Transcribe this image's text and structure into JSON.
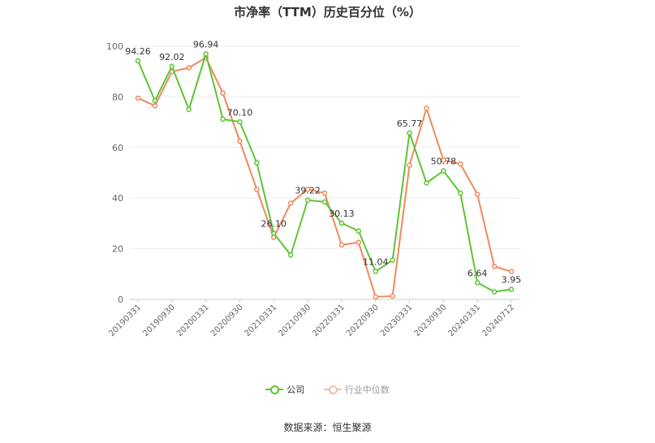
{
  "title": "市净率（TTM）历史百分位（%）",
  "source": "数据来源：恒生聚源",
  "chart_data": {
    "type": "line",
    "title": "市净率（TTM）历史百分位（%）",
    "ylim": [
      0,
      100
    ],
    "yticks": [
      0,
      20,
      40,
      60,
      80,
      100
    ],
    "grid": true,
    "legend_position": "bottom",
    "xtick_labels": [
      "20190331",
      "20190930",
      "20200331",
      "20200930",
      "20210331",
      "20210930",
      "20220331",
      "20220930",
      "20230331",
      "20230930",
      "20240331",
      "20240712"
    ],
    "x": [
      "20190331",
      "20190630",
      "20190930",
      "20191231",
      "20200331",
      "20200630",
      "20200930",
      "20201231",
      "20210331",
      "20210630",
      "20210930",
      "20211231",
      "20220331",
      "20220630",
      "20220930",
      "20221231",
      "20230331",
      "20230630",
      "20230930",
      "20231231",
      "20240331",
      "20240630",
      "20240712"
    ],
    "series": [
      {
        "name": "公司",
        "color": "#5dc434",
        "values": [
          94.26,
          78.5,
          92.02,
          75.0,
          96.94,
          71.2,
          70.1,
          54.0,
          26.1,
          17.5,
          39.22,
          38.5,
          30.13,
          27.0,
          11.04,
          15.5,
          65.77,
          46.0,
          50.78,
          42.0,
          6.64,
          3.0,
          3.95
        ]
      },
      {
        "name": "行业中位数",
        "color": "#f0895c",
        "values": [
          79.5,
          76.5,
          90.0,
          91.5,
          95.5,
          81.5,
          62.5,
          43.5,
          24.5,
          38.0,
          43.5,
          42.0,
          21.5,
          22.5,
          1.0,
          1.3,
          53.0,
          75.5,
          55.0,
          53.5,
          41.5,
          13.0,
          11.0
        ]
      }
    ],
    "data_labels": [
      {
        "index": 0,
        "text": "94.26"
      },
      {
        "index": 2,
        "text": "92.02"
      },
      {
        "index": 4,
        "text": "96.94"
      },
      {
        "index": 6,
        "text": "70.10"
      },
      {
        "index": 8,
        "text": "26.10"
      },
      {
        "index": 10,
        "text": "39.22"
      },
      {
        "index": 12,
        "text": "30.13"
      },
      {
        "index": 14,
        "text": "11.04"
      },
      {
        "index": 16,
        "text": "65.77"
      },
      {
        "index": 18,
        "text": "50.78"
      },
      {
        "index": 20,
        "text": "6.64"
      },
      {
        "index": 22,
        "text": "3.95"
      }
    ]
  }
}
